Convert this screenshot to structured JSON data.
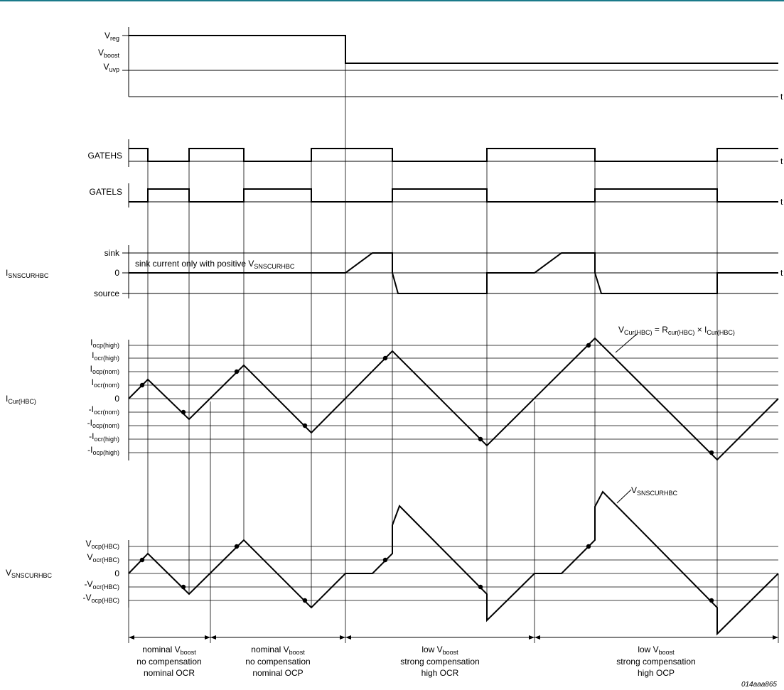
{
  "panel1": {
    "vreg": {
      "main": "V",
      "sub": "reg"
    },
    "vboost": {
      "main": "V",
      "sub": "boost"
    },
    "vuvp": {
      "main": "V",
      "sub": "uvp"
    },
    "t_axis": "t"
  },
  "panel2": {
    "gatehs": "GATEHS",
    "t_axis": "t"
  },
  "panel3": {
    "gatels": "GATELS",
    "t_axis": "t"
  },
  "panel4": {
    "signal": {
      "main": "I",
      "sub": "SNSCURHBC"
    },
    "sink": "sink",
    "zero": "0",
    "source": "source",
    "note": {
      "main": "sink current only with positive V",
      "sub": "SNSCURHBC"
    },
    "t_axis": "t"
  },
  "panel5": {
    "signal": {
      "main": "I",
      "sub": "Cur(HBC)"
    },
    "levels": [
      {
        "main": "I",
        "sub": "ocp(high)"
      },
      {
        "main": "I",
        "sub": "ocr(high)"
      },
      {
        "main": "I",
        "sub": "ocp(nom)"
      },
      {
        "main": "I",
        "sub": "ocr(nom)"
      },
      {
        "main": "0",
        "sub": ""
      },
      {
        "main": "-I",
        "sub": "ocr(nom)"
      },
      {
        "main": "-I",
        "sub": "ocp(nom)"
      },
      {
        "main": "-I",
        "sub": "ocr(high)"
      },
      {
        "main": "-I",
        "sub": "ocp(high)"
      }
    ],
    "equation": {
      "a": "V",
      "a_sub": "Cur(HBC)",
      "b": " = R",
      "b_sub": "cur(HBC)",
      "c": " × I",
      "c_sub": "Cur(HBC)"
    }
  },
  "panel6": {
    "signal": {
      "main": "V",
      "sub": "SNSCURHBC"
    },
    "levels": [
      {
        "main": "V",
        "sub": "ocp(HBC)"
      },
      {
        "main": "V",
        "sub": "ocr(HBC)"
      },
      {
        "main": "0",
        "sub": ""
      },
      {
        "main": "-V",
        "sub": "ocr(HBC)"
      },
      {
        "main": "-V",
        "sub": "ocp(HBC)"
      }
    ],
    "annotation": {
      "main": "V",
      "sub": "SNSCURHBC"
    }
  },
  "captions": [
    {
      "l1a": "nominal V",
      "l1s": "boost",
      "l2": "no compensation",
      "l3": "nominal OCR"
    },
    {
      "l1a": "nominal V",
      "l1s": "boost",
      "l2": "no compensation",
      "l3": "nominal OCP"
    },
    {
      "l1a": "low V",
      "l1s": "boost",
      "l2": "strong compensation",
      "l3": "high OCR"
    },
    {
      "l1a": "low V",
      "l1s": "boost",
      "l2": "strong compensation",
      "l3": "high OCP"
    }
  ],
  "figure_id": "014aaa865"
}
